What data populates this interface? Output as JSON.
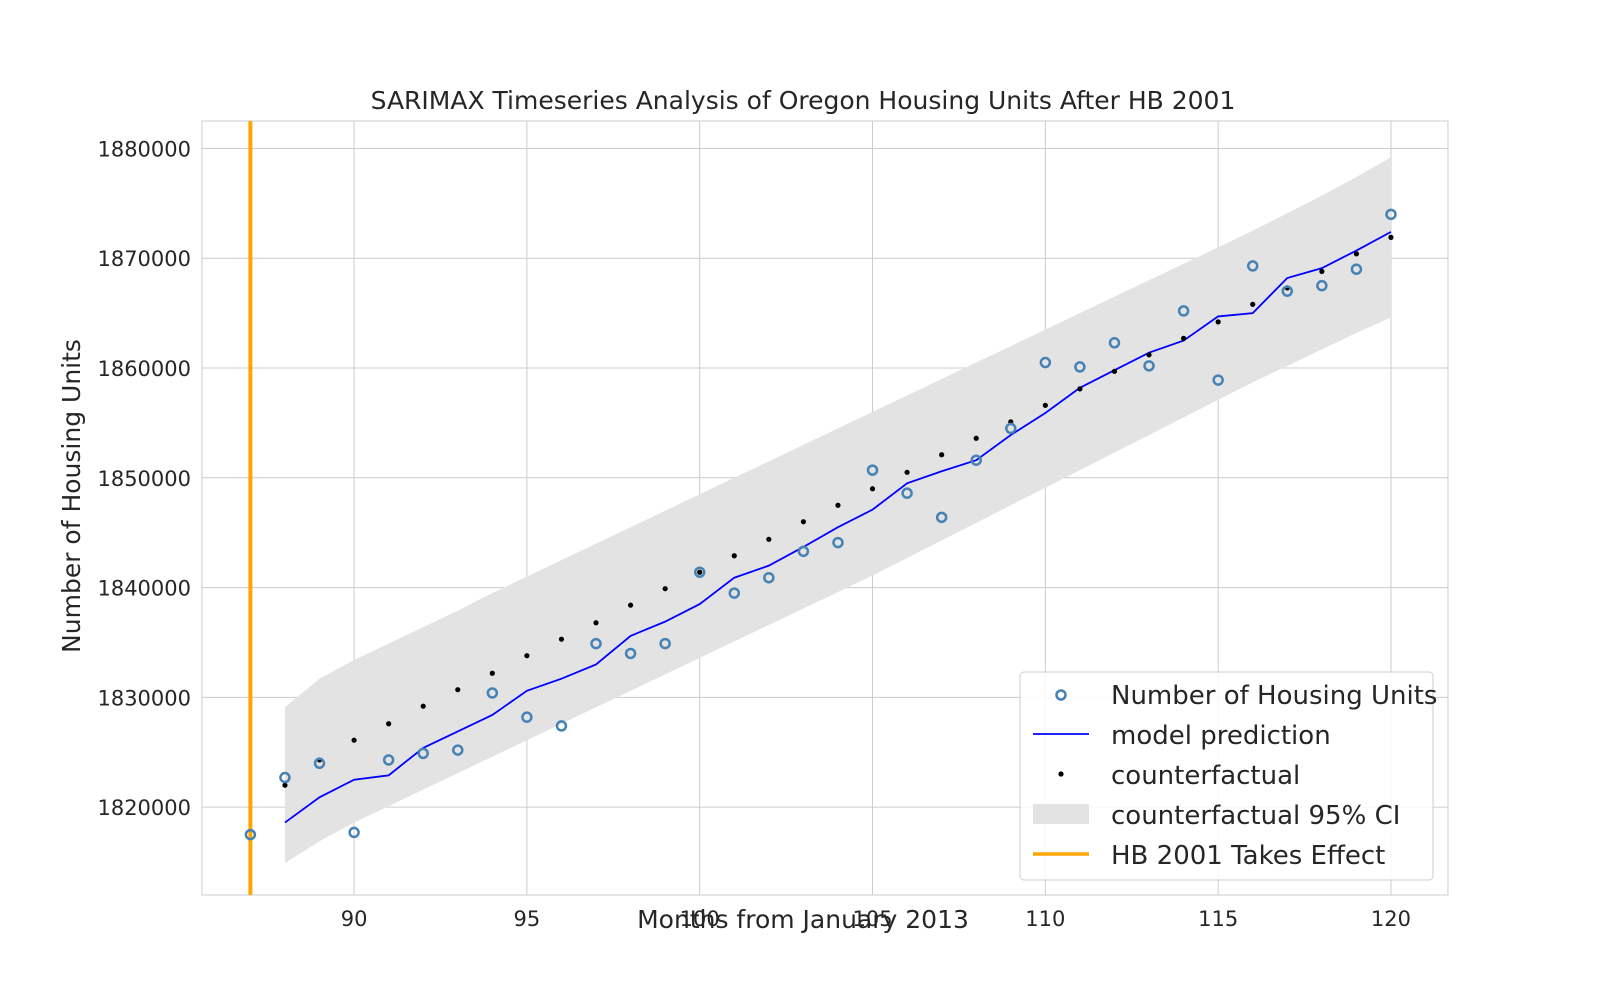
{
  "chart_data": {
    "type": "line",
    "title": "SARIMAX Timeseries Analysis of Oregon Housing Units After HB 2001",
    "xlabel": "Months from January 2013",
    "ylabel": "Number of Housing Units",
    "xlim": [
      85.6,
      121.65
    ],
    "ylim": [
      1812000,
      1882500
    ],
    "xticks": [
      90,
      95,
      100,
      105,
      110,
      115,
      120
    ],
    "yticks": [
      1820000,
      1830000,
      1840000,
      1850000,
      1860000,
      1870000,
      1880000
    ],
    "grid": true,
    "legend_position": "lower-right",
    "series": [
      {
        "name": "Number of Housing Units",
        "kind": "scatter-open",
        "color": "#4682b4",
        "x": [
          87,
          88,
          89,
          90,
          91,
          92,
          93,
          94,
          95,
          96,
          97,
          98,
          99,
          100,
          101,
          102,
          103,
          104,
          105,
          106,
          107,
          108,
          109,
          110,
          111,
          112,
          113,
          114,
          115,
          116,
          117,
          118,
          119,
          120
        ],
        "values": [
          1817500,
          1822700,
          1824000,
          1817700,
          1824300,
          1824900,
          1825200,
          1830400,
          1828200,
          1827400,
          1834900,
          1834000,
          1834900,
          1841400,
          1839500,
          1840900,
          1843300,
          1844100,
          1850700,
          1848600,
          1846400,
          1851600,
          1854500,
          1860500,
          1860100,
          1862300,
          1860200,
          1865200,
          1858900,
          1869300,
          1867000,
          1867500,
          1869000,
          1874000
        ]
      },
      {
        "name": "model prediction",
        "kind": "line",
        "color": "#0000ff",
        "x": [
          88,
          89,
          90,
          91,
          92,
          93,
          94,
          95,
          96,
          97,
          98,
          99,
          100,
          101,
          102,
          103,
          104,
          105,
          106,
          107,
          108,
          109,
          110,
          111,
          112,
          113,
          114,
          115,
          116,
          117,
          118,
          119,
          120
        ],
        "values": [
          1818600,
          1820900,
          1822500,
          1822900,
          1825400,
          1826900,
          1828400,
          1830600,
          1831700,
          1833000,
          1835600,
          1836900,
          1838500,
          1840900,
          1842000,
          1843700,
          1845500,
          1847100,
          1849500,
          1850600,
          1851600,
          1853900,
          1855900,
          1858200,
          1859800,
          1861400,
          1862500,
          1864700,
          1865000,
          1868200,
          1869100,
          1870700,
          1872400
        ]
      },
      {
        "name": "counterfactual",
        "kind": "scatter-dot",
        "color": "#000000",
        "x": [
          88,
          89,
          90,
          91,
          92,
          93,
          94,
          95,
          96,
          97,
          98,
          99,
          100,
          101,
          102,
          103,
          104,
          105,
          106,
          107,
          108,
          109,
          110,
          111,
          112,
          113,
          114,
          115,
          116,
          117,
          118,
          119,
          120
        ],
        "values": [
          1822000,
          1824300,
          1826100,
          1827600,
          1829200,
          1830700,
          1832200,
          1833800,
          1835300,
          1836800,
          1838400,
          1839900,
          1841400,
          1842900,
          1844400,
          1846000,
          1847500,
          1849000,
          1850500,
          1852100,
          1853600,
          1855100,
          1856600,
          1858100,
          1859700,
          1861200,
          1862700,
          1864200,
          1865800,
          1867300,
          1868800,
          1870400,
          1871900
        ]
      },
      {
        "name": "counterfactual 95% CI",
        "kind": "band",
        "color": "#e3e3e3",
        "x": [
          88,
          89,
          90,
          91,
          92,
          93,
          94,
          95,
          96,
          97,
          98,
          99,
          100,
          101,
          102,
          103,
          104,
          105,
          106,
          107,
          108,
          109,
          110,
          111,
          112,
          113,
          114,
          115,
          116,
          117,
          118,
          119,
          120
        ],
        "upper": [
          1829100,
          1831700,
          1833400,
          1834900,
          1836400,
          1837900,
          1839500,
          1841000,
          1842500,
          1844000,
          1845500,
          1847000,
          1848500,
          1850000,
          1851500,
          1853000,
          1854500,
          1856000,
          1857500,
          1859000,
          1860500,
          1862000,
          1863500,
          1865000,
          1866500,
          1868000,
          1869500,
          1871000,
          1872500,
          1874100,
          1875700,
          1877400,
          1879200
        ],
        "lower": [
          1814900,
          1816900,
          1818600,
          1820100,
          1821600,
          1823100,
          1824600,
          1826100,
          1827600,
          1829100,
          1830600,
          1832100,
          1833600,
          1835100,
          1836600,
          1838100,
          1839600,
          1841100,
          1842700,
          1844300,
          1845900,
          1847500,
          1849100,
          1850700,
          1852300,
          1853900,
          1855500,
          1857100,
          1858700,
          1860200,
          1861700,
          1863200,
          1864600
        ]
      },
      {
        "name": "HB 2001 Takes Effect",
        "kind": "vline",
        "color": "#ffa500",
        "x": 87
      }
    ]
  }
}
